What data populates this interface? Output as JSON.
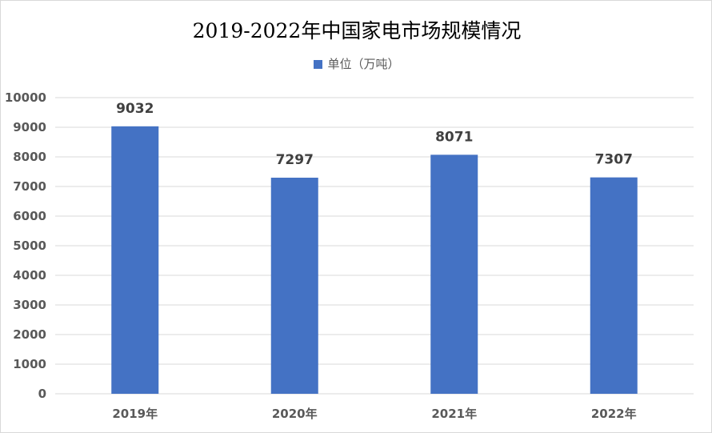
{
  "chart_data": {
    "type": "bar",
    "title": "2019-2022年中国家电市场规模情况",
    "categories": [
      "2019年",
      "2020年",
      "2021年",
      "2022年"
    ],
    "series": [
      {
        "name": "单位（万吨）",
        "values": [
          9032,
          7297,
          8071,
          7307
        ]
      }
    ],
    "data_labels": [
      "9032",
      "7297",
      "8071",
      "7307"
    ],
    "y_ticks": [
      "0",
      "1000",
      "2000",
      "3000",
      "4000",
      "5000",
      "6000",
      "7000",
      "8000",
      "9000",
      "10000"
    ],
    "ylim": [
      0,
      10000
    ],
    "xlabel": "",
    "ylabel": "",
    "grid": true,
    "legend_position": "top",
    "bar_color": "#4472C4",
    "grid_color": "#d9d9d9"
  }
}
